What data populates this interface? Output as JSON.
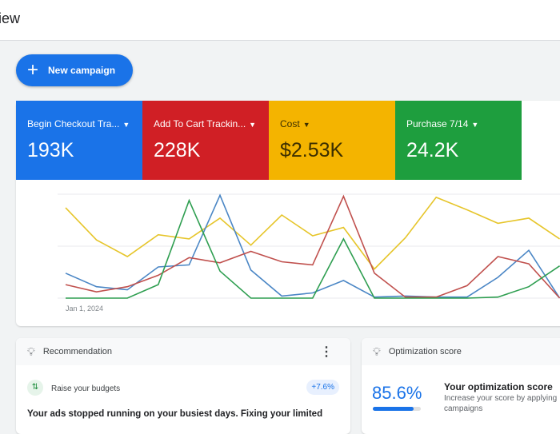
{
  "header": {
    "title": "iew"
  },
  "new_campaign": {
    "label": "New campaign",
    "icon": "plus-icon"
  },
  "metrics": [
    {
      "name": "Begin Checkout Tra...",
      "value": "193K",
      "color": "#1a73e8"
    },
    {
      "name": "Add To Cart Trackin...",
      "value": "228K",
      "color": "#d01f25"
    },
    {
      "name": "Cost",
      "value": "$2.53K",
      "color": "#f4b400"
    },
    {
      "name": "Purchase 7/14",
      "value": "24.2K",
      "color": "#1e9e3e"
    }
  ],
  "chart_data": {
    "type": "line",
    "x_first_label": "Jan 1, 2024",
    "grid": true,
    "ylim": [
      0,
      100
    ],
    "series": [
      {
        "color": "#e6c52a",
        "values": [
          87,
          56,
          40,
          61,
          57,
          77,
          51,
          80,
          60,
          68,
          28,
          58,
          97,
          85,
          72,
          77,
          57
        ]
      },
      {
        "color": "#4a86c5",
        "values": [
          24,
          11,
          8,
          30,
          32,
          99,
          27,
          2,
          5,
          17,
          1,
          2,
          1,
          1,
          20,
          46,
          0
        ]
      },
      {
        "color": "#c0504d",
        "values": [
          13,
          6,
          11,
          22,
          39,
          34,
          45,
          35,
          32,
          98,
          24,
          1,
          1,
          12,
          40,
          33,
          0
        ]
      },
      {
        "color": "#2e9e50",
        "values": [
          0,
          0,
          0,
          13,
          94,
          26,
          0,
          0,
          0,
          57,
          0,
          0,
          0,
          0,
          1,
          11,
          31
        ]
      }
    ]
  },
  "recommendation": {
    "title": "Recommendation",
    "item": "Raise your budgets",
    "badge": "+7.6%",
    "text": "Your ads stopped running on your busiest days. Fixing your limited"
  },
  "optimization": {
    "title": "Optimization score",
    "score": "85.6%",
    "score_fraction": 0.856,
    "heading": "Your optimization score",
    "desc": "Increase your score by applying",
    "desc2": "campaigns"
  }
}
